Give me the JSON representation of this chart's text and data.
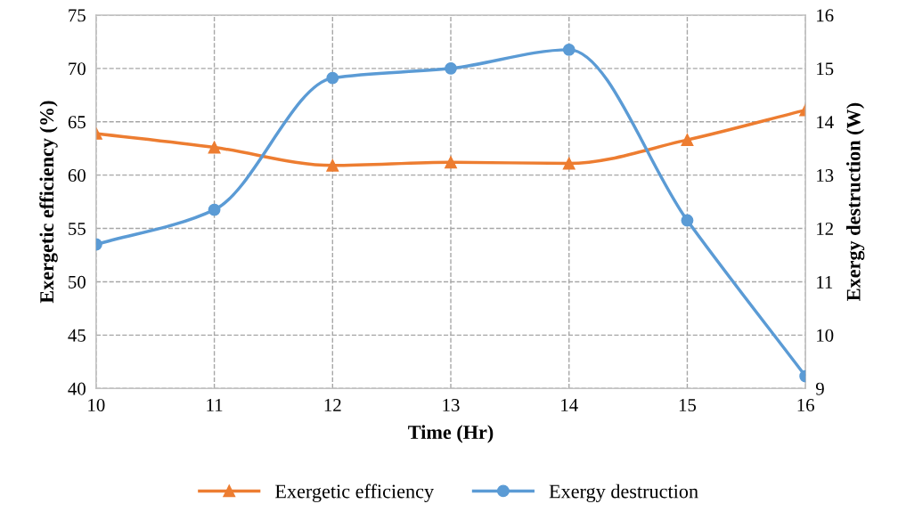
{
  "chart_data": {
    "type": "line",
    "xlabel": "Time (Hr)",
    "ylabel": "Exergetic efficiency (%)",
    "y2label": "Exergy destruction (W)",
    "x": [
      10,
      11,
      12,
      13,
      14,
      15,
      16
    ],
    "series": [
      {
        "name": "Exergetic efficiency",
        "color": "#ed7d31",
        "marker": "triangle",
        "values": [
          63.9,
          62.6,
          60.9,
          61.2,
          61.1,
          63.3,
          66.1
        ]
      },
      {
        "name": "Exergy destruction",
        "color": "#5b9bd5",
        "marker": "circle",
        "axis": "y2",
        "values": [
          11.7,
          12.35,
          14.82,
          15.0,
          15.35,
          12.15,
          9.23
        ]
      }
    ],
    "xlim": [
      10,
      16
    ],
    "xticks": [
      10,
      11,
      12,
      13,
      14,
      15,
      16
    ],
    "ylim": [
      40,
      75
    ],
    "yticks": [
      40,
      45,
      50,
      55,
      60,
      65,
      70,
      75
    ],
    "y2lim": [
      9,
      16
    ],
    "y2ticks": [
      9,
      10,
      11,
      12,
      13,
      14,
      15,
      16
    ],
    "grid": true,
    "legend": "bottom",
    "line_style": "solid"
  }
}
